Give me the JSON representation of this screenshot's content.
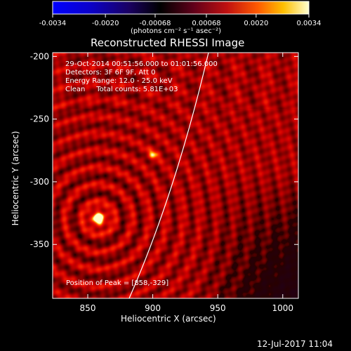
{
  "chart_data": {
    "type": "heatmap",
    "title": "Reconstructed RHESSI Image",
    "xlabel": "Heliocentric X (arcsec)",
    "ylabel": "Heliocentric Y (arcsec)",
    "xlim": [
      823,
      1012
    ],
    "ylim": [
      -393,
      -197
    ],
    "x_ticks": [
      "850",
      "900",
      "950",
      "1000"
    ],
    "y_ticks": [
      "-200",
      "-250",
      "-300",
      "-350"
    ],
    "colorbar": {
      "ticks": [
        "-0.0034",
        "-0.0020",
        "-0.00068",
        "0.00068",
        "0.0020",
        "0.0034"
      ],
      "label": "(photons cm⁻² s⁻¹ asec⁻²)",
      "range": [
        -0.0034,
        0.0034
      ]
    },
    "annotations": [
      "29-Oct-2014 00:51:56.000 to 01:01:56.000",
      "Detectors: 3F 6F 9F, Att 0",
      "Energy Range: 12.0 - 25.0 keV",
      "Clean     Total counts: 5.81E+03"
    ],
    "peak_label": "Position of Peak = [858,-329]",
    "peak": [
      858,
      -329
    ],
    "grid": false
  },
  "footer": {
    "timestamp": "12-Jul-2017 11:04"
  }
}
